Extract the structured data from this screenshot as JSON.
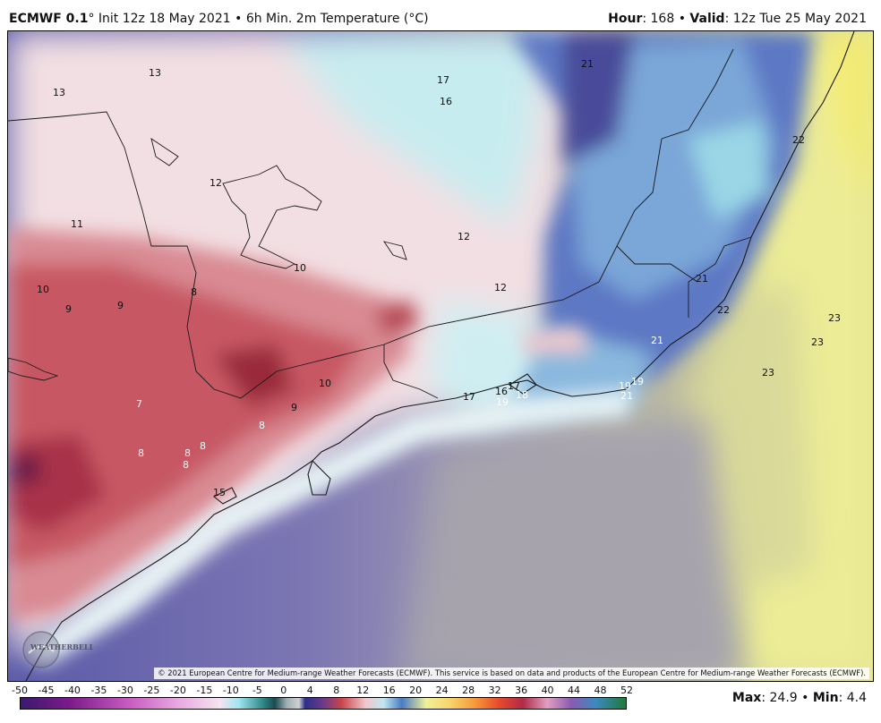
{
  "header": {
    "model_name": "ECMWF 0.1",
    "model_suffix": "°",
    "init_text": "Init 12z 18 May 2021",
    "separator": "•",
    "product": "6h Min. 2m Temperature (°C)",
    "hour_label": "Hour",
    "hour_value": ": 168",
    "valid_label": "Valid",
    "valid_value": ": 12z Tue 25 May 2021"
  },
  "map": {
    "temperature_labels": [
      {
        "text": "13"
      },
      {
        "text": "13"
      },
      {
        "text": "17"
      },
      {
        "text": "16"
      },
      {
        "text": "21"
      },
      {
        "text": "12"
      },
      {
        "text": "11"
      },
      {
        "text": "12"
      },
      {
        "text": "10"
      },
      {
        "text": "10"
      },
      {
        "text": "9"
      },
      {
        "text": "9"
      },
      {
        "text": "8"
      },
      {
        "text": "12"
      },
      {
        "text": "21"
      },
      {
        "text": "22"
      },
      {
        "text": "23"
      },
      {
        "text": "23"
      },
      {
        "text": "21"
      },
      {
        "text": "22"
      },
      {
        "text": "23"
      },
      {
        "text": "10"
      },
      {
        "text": "9"
      },
      {
        "text": "7"
      },
      {
        "text": "8"
      },
      {
        "text": "8"
      },
      {
        "text": "8"
      },
      {
        "text": "8"
      },
      {
        "text": "8"
      },
      {
        "text": "15"
      },
      {
        "text": "17"
      },
      {
        "text": "16"
      },
      {
        "text": "17"
      },
      {
        "text": "18"
      },
      {
        "text": "19"
      },
      {
        "text": "19"
      },
      {
        "text": "19"
      },
      {
        "text": "21"
      }
    ],
    "copyright": "© 2021 European Centre for Medium-range Weather Forecasts (ECMWF). This service is based on data and products of the European Centre for Medium-range Weather Forecasts (ECMWF).",
    "logo_text": "WEATHERBELL"
  },
  "colorbar": {
    "ticks": [
      "-50",
      "-45",
      "-40",
      "-35",
      "-30",
      "-25",
      "-20",
      "-15",
      "-10",
      "-5",
      "0",
      "4",
      "8",
      "12",
      "16",
      "20",
      "24",
      "28",
      "32",
      "36",
      "40",
      "44",
      "48",
      "52"
    ],
    "colors": {
      "cold": "#3a1a6e",
      "cool": "#9fe6f0",
      "freezing": "#2c2f8a",
      "mild": "#c9444a",
      "warm": "#f7f29a",
      "hot": "#1f7a3a"
    }
  },
  "stats": {
    "max_label": "Max",
    "max_value": ": 24.9",
    "separator": "•",
    "min_label": "Min",
    "min_value": ": 4.4"
  }
}
